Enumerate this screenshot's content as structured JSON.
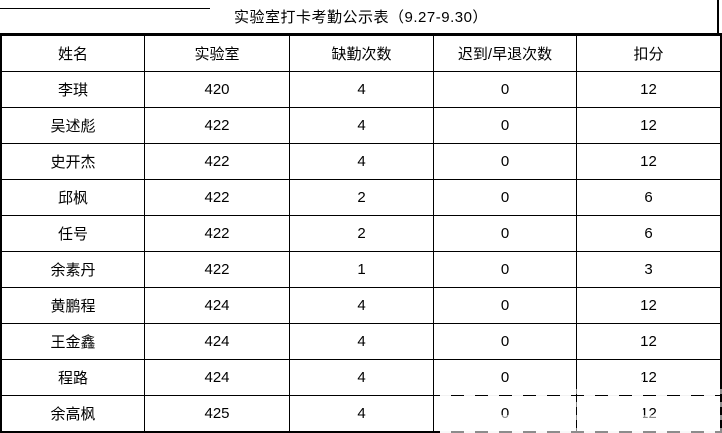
{
  "title": "实验室打卡考勤公示表（9.27-9.30）",
  "table": {
    "headers": [
      "姓名",
      "实验室",
      "缺勤次数",
      "迟到/早退次数",
      "扣分"
    ],
    "rows": [
      {
        "name": "李琪",
        "lab": "420",
        "absent": "4",
        "late": "0",
        "deduct": "12"
      },
      {
        "name": "吴述彪",
        "lab": "422",
        "absent": "4",
        "late": "0",
        "deduct": "12"
      },
      {
        "name": "史开杰",
        "lab": "422",
        "absent": "4",
        "late": "0",
        "deduct": "12"
      },
      {
        "name": "邱枫",
        "lab": "422",
        "absent": "2",
        "late": "0",
        "deduct": "6"
      },
      {
        "name": "任号",
        "lab": "422",
        "absent": "2",
        "late": "0",
        "deduct": "6"
      },
      {
        "name": "余素丹",
        "lab": "422",
        "absent": "1",
        "late": "0",
        "deduct": "3"
      },
      {
        "name": "黄鹏程",
        "lab": "424",
        "absent": "4",
        "late": "0",
        "deduct": "12"
      },
      {
        "name": "王金鑫",
        "lab": "424",
        "absent": "4",
        "late": "0",
        "deduct": "12"
      },
      {
        "name": "程路",
        "lab": "424",
        "absent": "4",
        "late": "0",
        "deduct": "12"
      },
      {
        "name": "余高枫",
        "lab": "425",
        "absent": "4",
        "late": "0",
        "deduct": "12"
      }
    ]
  },
  "colors": {
    "border": "#000000",
    "text": "#000000",
    "background": "#ffffff"
  }
}
